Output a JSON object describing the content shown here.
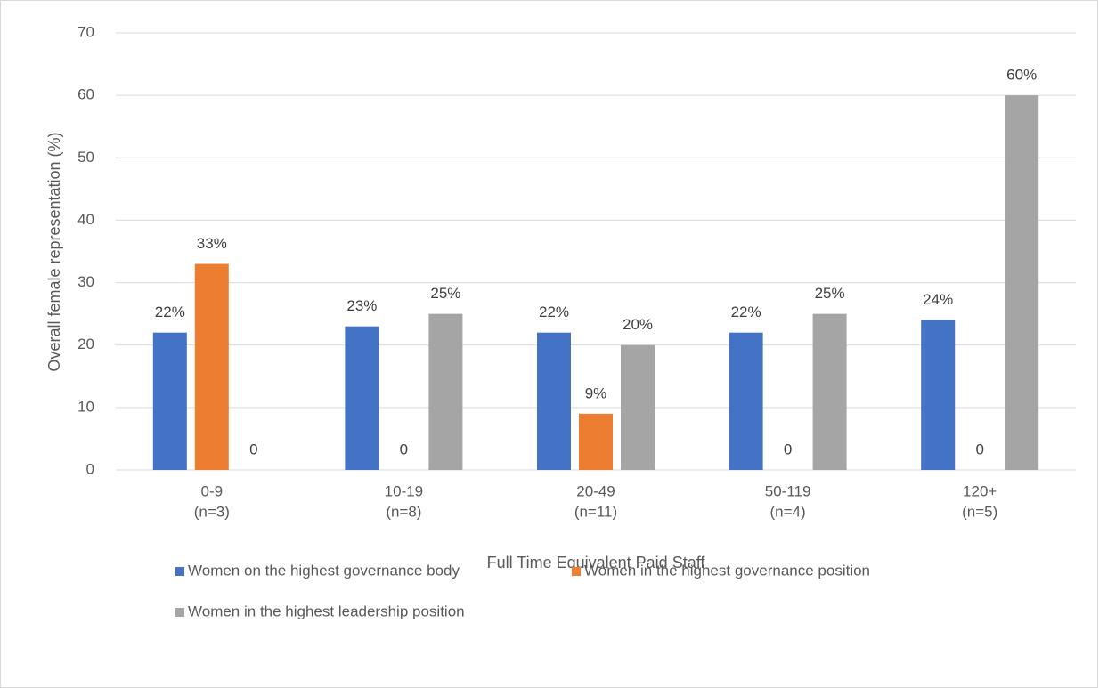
{
  "chart_data": {
    "type": "bar",
    "categories": [
      [
        "0-9",
        "(n=3)"
      ],
      [
        "10-19",
        "(n=8)"
      ],
      [
        "20-49",
        "(n=11)"
      ],
      [
        "50-119",
        "(n=4)"
      ],
      [
        "120+",
        "(n=5)"
      ]
    ],
    "series": [
      {
        "name": "Women on the highest governance body",
        "color": "#4472c4",
        "values": [
          22,
          23,
          22,
          22,
          24
        ],
        "value_labels": [
          "22%",
          "23%",
          "22%",
          "22%",
          "24%"
        ]
      },
      {
        "name": "Women in the highest governance position",
        "color": "#ed7d31",
        "values": [
          33,
          0,
          9,
          0,
          0
        ],
        "value_labels": [
          "33%",
          "0",
          "9%",
          "0",
          "0"
        ]
      },
      {
        "name": "Women in the highest leadership position",
        "color": "#a5a5a5",
        "values": [
          0,
          25,
          20,
          25,
          60
        ],
        "value_labels": [
          "0",
          "25%",
          "20%",
          "25%",
          "60%"
        ]
      }
    ],
    "xlabel": "Full Time Equivalent Paid Staff",
    "ylabel": "Overall female representation (%)",
    "ylim": [
      0,
      70
    ],
    "yticks": [
      0,
      10,
      20,
      30,
      40,
      50,
      60,
      70
    ],
    "grid": true
  }
}
